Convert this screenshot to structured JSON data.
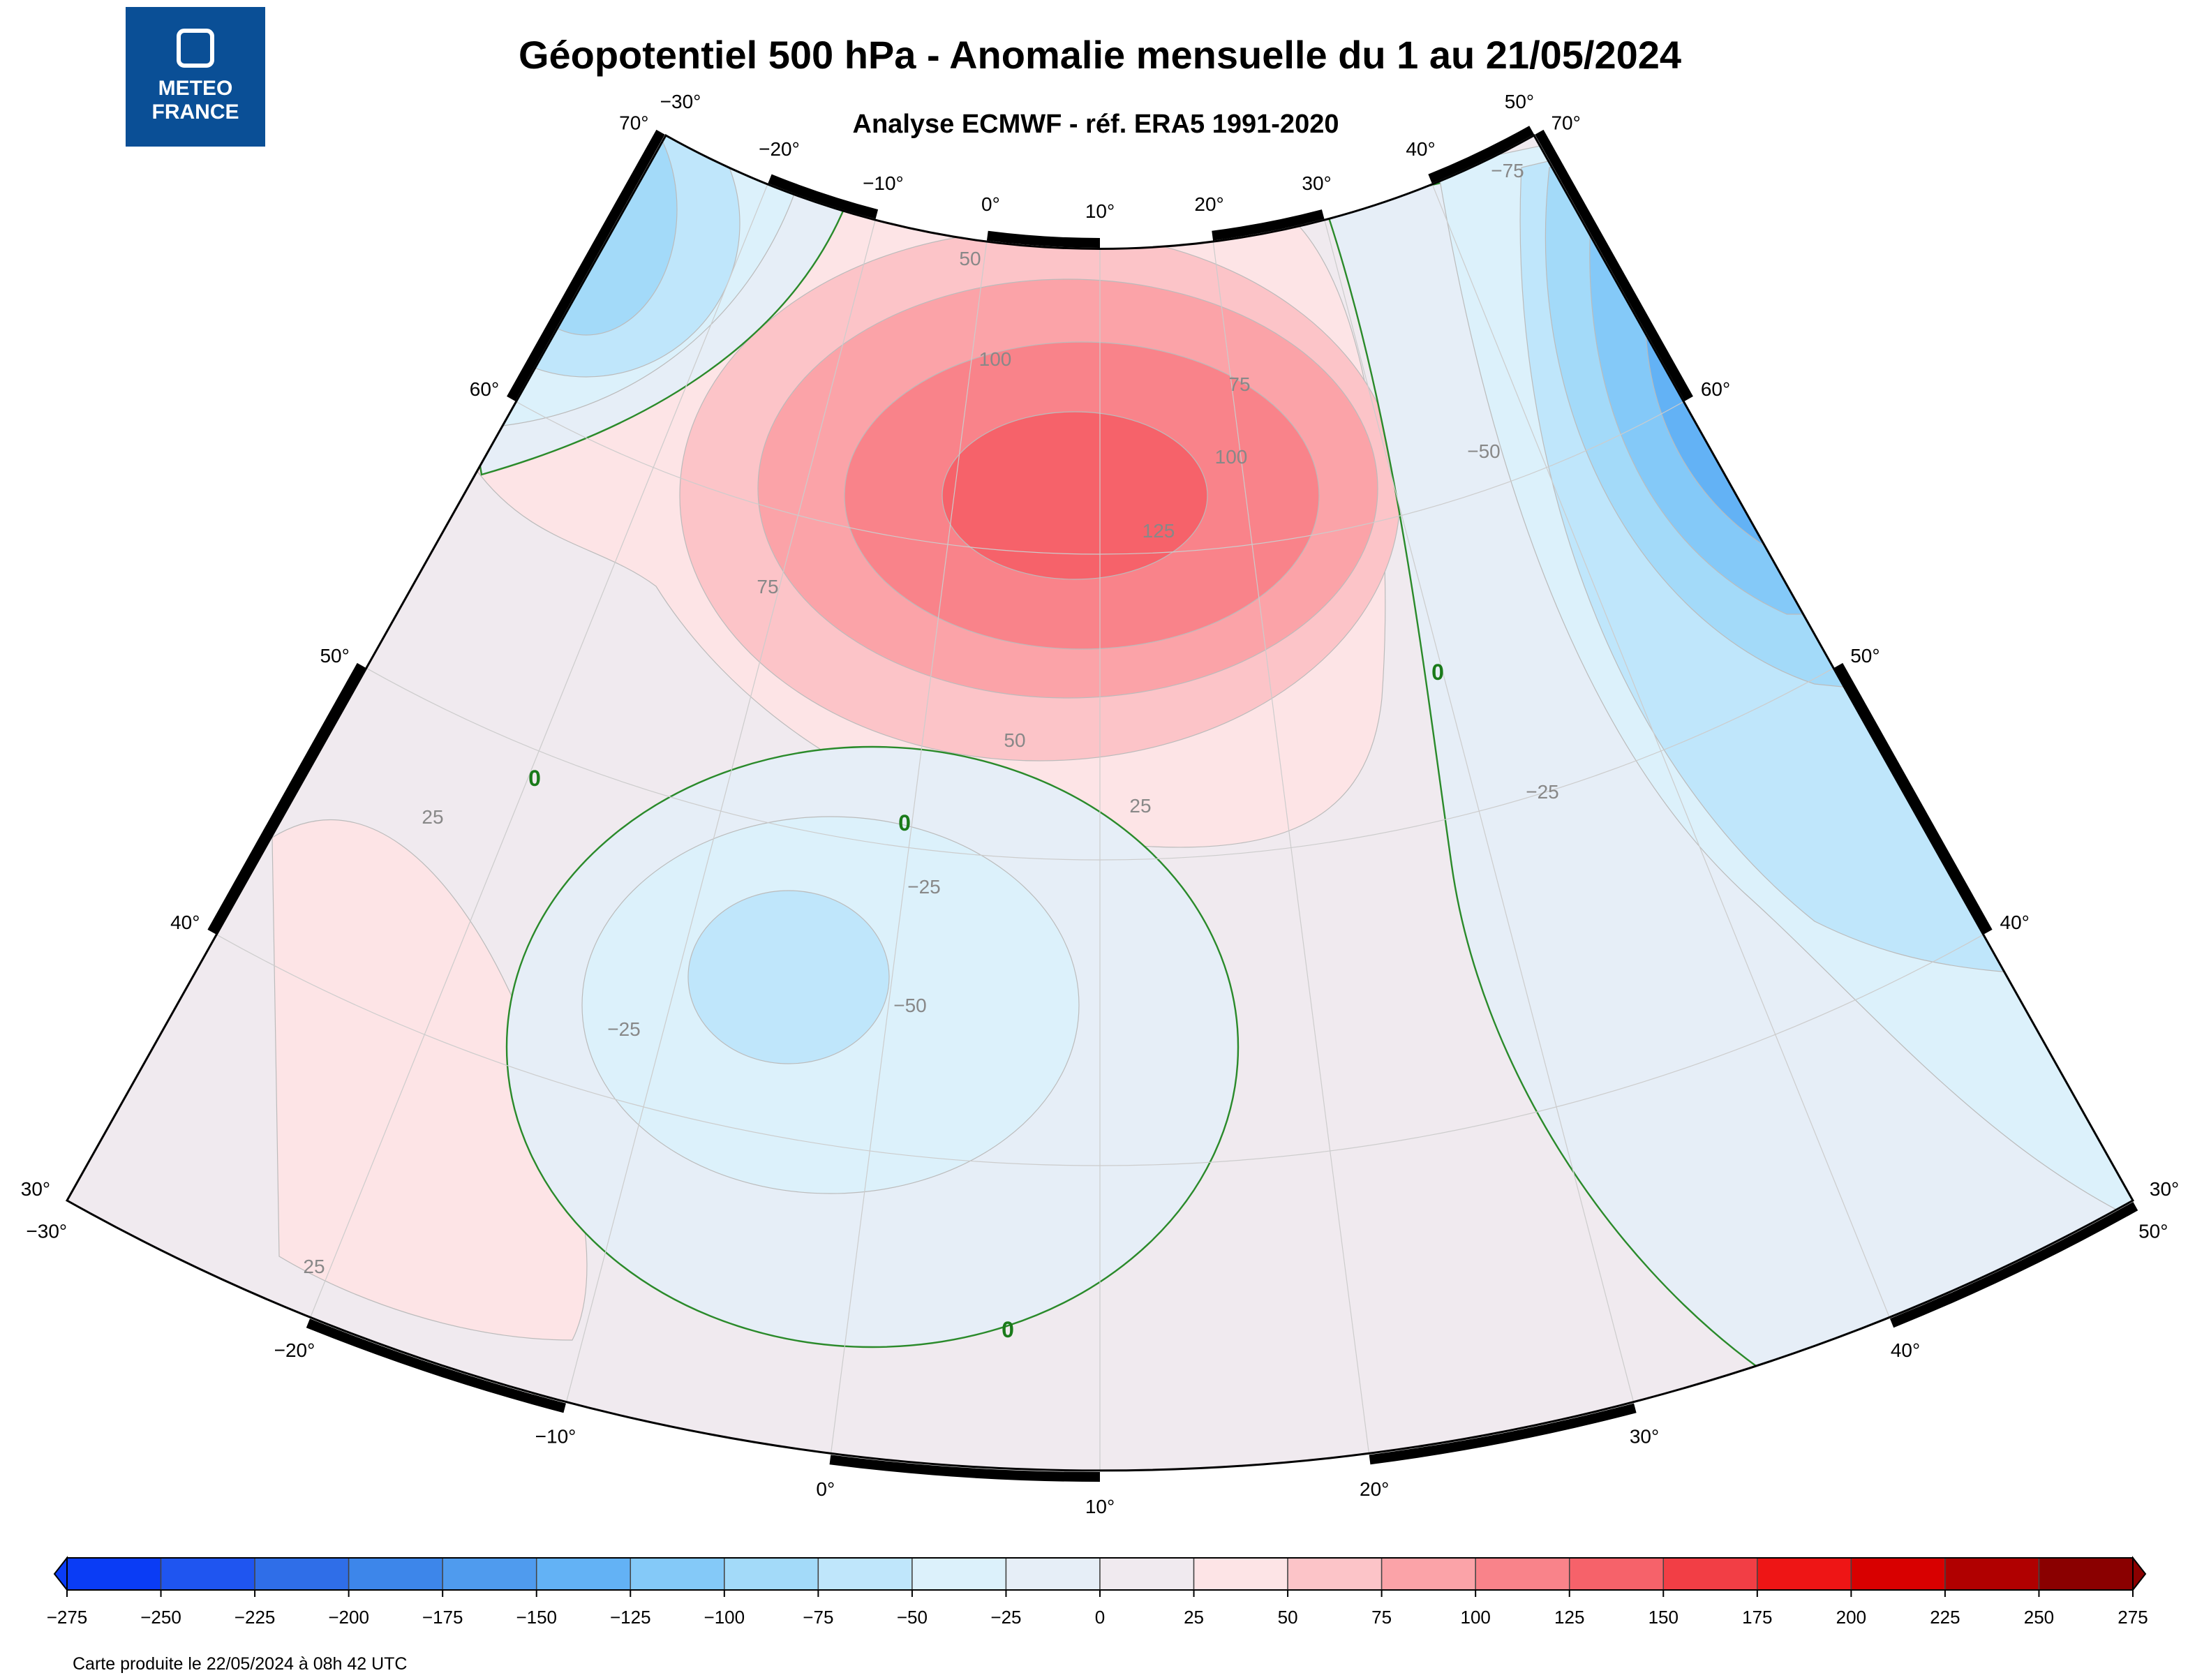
{
  "title": "Géopotentiel 500 hPa - Anomalie mensuelle du 1 au 21/05/2024",
  "subtitle": "Analyse ECMWF - réf. ERA5 1991-2020",
  "logo": [
    "METEO",
    "FRANCE"
  ],
  "map": {
    "lon_top": [
      "−30°",
      "−20°",
      "−10°",
      "0°",
      "10°",
      "20°",
      "30°",
      "40°",
      "50°"
    ],
    "lon_bottom": [
      "−30°",
      "−20°",
      "−10°",
      "0°",
      "10°",
      "20°",
      "30°",
      "40°",
      "50°"
    ],
    "lat_left": [
      "70°",
      "60°",
      "50°",
      "40°",
      "30°"
    ],
    "lat_right": [
      "70°",
      "60°",
      "50°",
      "40°",
      "30°"
    ],
    "contour_labels": [
      "50",
      "100",
      "75",
      "100",
      "125",
      "75",
      "50",
      "25",
      "25",
      "0",
      "0",
      "−25",
      "−50",
      "−25",
      "25",
      "0",
      "0",
      "−25",
      "−50",
      "−75"
    ]
  },
  "colorbar": {
    "ticks": [
      "−275",
      "−250",
      "−225",
      "−200",
      "−175",
      "−150",
      "−125",
      "−100",
      "−75",
      "−50",
      "−25",
      "0",
      "25",
      "50",
      "75",
      "100",
      "125",
      "150",
      "175",
      "200",
      "225",
      "250",
      "275"
    ],
    "colors": [
      "#0a3cf5",
      "#1f55f0",
      "#2f6ee8",
      "#3d86ea",
      "#4f9bee",
      "#63b2f5",
      "#84c9f8",
      "#a3daf9",
      "#bfe6fb",
      "#dcf1fb",
      "#e6eef7",
      "#f0eaef",
      "#fde4e6",
      "#fcc4c8",
      "#fba3a8",
      "#f9838a",
      "#f6626a",
      "#f23e45",
      "#ee1515",
      "#d80000",
      "#b00000",
      "#8a0000"
    ]
  },
  "footer": "Carte produite le 22/05/2024 à 08h 42 UTC"
}
